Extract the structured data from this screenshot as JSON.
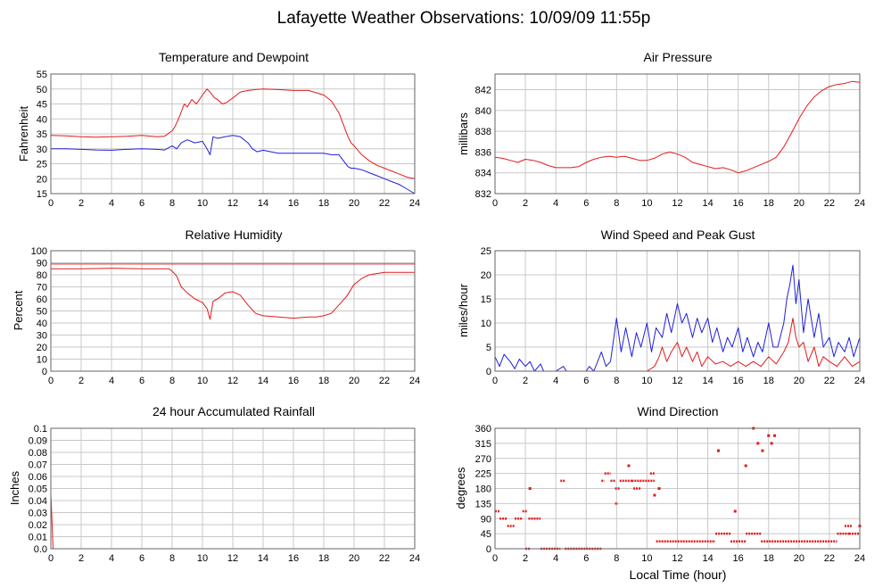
{
  "page": {
    "title": "Lafayette Weather Observations: 10/09/09 11:55p",
    "xlabel": "Local Time (hour)"
  },
  "colors": {
    "red": "#e41a1c",
    "blue": "#1f1fdd",
    "grid": "#c8c8c8",
    "frame": "#666666"
  },
  "chart_data": [
    {
      "id": "temp",
      "type": "line",
      "title": "Temperature and Dewpoint",
      "ylabel": "Fahrenheit",
      "xlim": [
        0,
        24
      ],
      "ylim": [
        15,
        55
      ],
      "xticks": [
        0,
        2,
        4,
        6,
        8,
        10,
        12,
        14,
        16,
        18,
        20,
        22,
        24
      ],
      "yticks": [
        15,
        20,
        25,
        30,
        35,
        40,
        45,
        50,
        55
      ],
      "grid": true,
      "series": [
        {
          "color": "red",
          "x": [
            0,
            1,
            2,
            3,
            4,
            5,
            6,
            7,
            7.5,
            8,
            8.2,
            8.5,
            8.8,
            9,
            9.3,
            9.6,
            10,
            10.3,
            10.5,
            10.8,
            11,
            11.3,
            11.6,
            12,
            12.5,
            13,
            13.5,
            14,
            15,
            16,
            17,
            18,
            18.5,
            19,
            19.3,
            19.6,
            19.8,
            20,
            20.5,
            21,
            21.5,
            22,
            22.5,
            23,
            23.5,
            24
          ],
          "y": [
            34.5,
            34.3,
            34,
            33.9,
            34,
            34.2,
            34.5,
            34,
            34.2,
            36,
            37.5,
            41,
            45,
            44,
            46.5,
            45,
            48,
            50,
            49,
            47,
            46.5,
            45,
            45.5,
            47,
            49,
            49.5,
            49.8,
            50,
            49.8,
            49.5,
            49.5,
            48,
            46,
            42,
            38,
            34,
            32,
            31,
            28,
            26,
            24.5,
            23.5,
            22.5,
            21.5,
            20.5,
            20
          ]
        },
        {
          "color": "blue",
          "x": [
            0,
            1,
            2,
            3,
            4,
            5,
            6,
            7,
            7.5,
            8,
            8.3,
            8.6,
            9,
            9.5,
            10,
            10.3,
            10.5,
            10.7,
            11,
            11.5,
            12,
            12.5,
            13,
            13.3,
            13.6,
            14,
            15,
            16,
            17,
            18,
            18.5,
            19,
            19.3,
            19.6,
            19.8,
            20,
            20.5,
            21,
            21.5,
            22,
            22.5,
            23,
            23.5,
            24
          ],
          "y": [
            30,
            30,
            29.8,
            29.6,
            29.5,
            29.8,
            30,
            29.8,
            29.6,
            31,
            30,
            32,
            33,
            32,
            32.5,
            30,
            28,
            34,
            33.5,
            34,
            34.5,
            34,
            32,
            30,
            29,
            29.5,
            28.5,
            28.5,
            28.5,
            28.5,
            28,
            28,
            26,
            24,
            23.5,
            23.5,
            23,
            22,
            21,
            20,
            19,
            18,
            16.5,
            15
          ]
        }
      ]
    },
    {
      "id": "pressure",
      "type": "line",
      "title": "Air Pressure",
      "ylabel": "millibars",
      "xlim": [
        0,
        24
      ],
      "ylim": [
        832,
        843.5
      ],
      "xticks": [
        0,
        2,
        4,
        6,
        8,
        10,
        12,
        14,
        16,
        18,
        20,
        22,
        24
      ],
      "yticks": [
        832,
        834,
        836,
        838,
        840,
        842
      ],
      "grid": true,
      "series": [
        {
          "color": "red",
          "x": [
            0,
            0.5,
            1,
            1.5,
            2,
            2.5,
            3,
            3.5,
            4,
            4.5,
            5,
            5.5,
            6,
            6.5,
            7,
            7.5,
            8,
            8.5,
            9,
            9.5,
            10,
            10.5,
            11,
            11.5,
            12,
            12.5,
            13,
            13.5,
            14,
            14.5,
            15,
            15.5,
            16,
            16.5,
            17,
            17.5,
            18,
            18.5,
            19,
            19.5,
            20,
            20.5,
            21,
            21.5,
            22,
            22.5,
            23,
            23.5,
            24
          ],
          "y": [
            835.5,
            835.4,
            835.2,
            835,
            835.3,
            835.2,
            835,
            834.7,
            834.5,
            834.5,
            834.5,
            834.6,
            835,
            835.3,
            835.5,
            835.6,
            835.5,
            835.6,
            835.4,
            835.2,
            835.2,
            835.4,
            835.8,
            836,
            835.8,
            835.5,
            835,
            834.8,
            834.6,
            834.4,
            834.5,
            834.3,
            834,
            834.2,
            834.5,
            834.8,
            835.1,
            835.5,
            836.5,
            837.8,
            839.2,
            840.4,
            841.3,
            841.9,
            842.3,
            842.5,
            842.6,
            842.8,
            842.7
          ]
        }
      ]
    },
    {
      "id": "humidity",
      "type": "line",
      "title": "Relative Humidity",
      "ylabel": "Percent",
      "xlim": [
        0,
        24
      ],
      "ylim": [
        0,
        100
      ],
      "xticks": [
        0,
        2,
        4,
        6,
        8,
        10,
        12,
        14,
        16,
        18,
        20,
        22,
        24
      ],
      "yticks": [
        0,
        10,
        20,
        30,
        40,
        50,
        60,
        70,
        80,
        90,
        100
      ],
      "grid": true,
      "series": [
        {
          "color": "red",
          "x": [
            0,
            24
          ],
          "y": [
            89,
            89
          ]
        },
        {
          "color": "red",
          "x": [
            0,
            2,
            4,
            6,
            7,
            7.8,
            8,
            8.3,
            8.6,
            9,
            9.5,
            10,
            10.3,
            10.5,
            10.7,
            11,
            11.5,
            12,
            12.5,
            13,
            13.5,
            14,
            15,
            16,
            17,
            17.5,
            18,
            18.5,
            19,
            19.5,
            20,
            20.5,
            21,
            22,
            23,
            24
          ],
          "y": [
            85,
            85,
            85.5,
            85,
            85,
            85,
            83,
            79,
            70,
            65,
            60,
            57,
            52,
            43,
            58,
            60,
            65,
            66,
            63,
            55,
            48,
            46,
            45,
            44,
            45,
            45,
            46,
            48,
            55,
            62,
            72,
            77,
            80,
            82,
            82,
            82
          ]
        }
      ]
    },
    {
      "id": "wind",
      "type": "line",
      "title": "Wind Speed and Peak Gust",
      "ylabel": "miles/hour",
      "xlim": [
        0,
        24
      ],
      "ylim": [
        0,
        25
      ],
      "xticks": [
        0,
        2,
        4,
        6,
        8,
        10,
        12,
        14,
        16,
        18,
        20,
        22,
        24
      ],
      "yticks": [
        0,
        5,
        10,
        15,
        20,
        25
      ],
      "grid": true,
      "series": [
        {
          "color": "blue",
          "x": [
            0,
            0.3,
            0.6,
            1,
            1.3,
            1.6,
            2,
            2.3,
            2.6,
            3,
            3.2,
            4,
            4.5,
            4.7,
            5,
            6,
            6.2,
            6.5,
            7,
            7.3,
            7.6,
            8,
            8.3,
            8.6,
            9,
            9.3,
            9.6,
            10,
            10.3,
            10.6,
            11,
            11.3,
            11.6,
            12,
            12.3,
            12.6,
            13,
            13.3,
            13.6,
            14,
            14.3,
            14.6,
            15,
            15.3,
            15.6,
            16,
            16.3,
            16.6,
            17,
            17.3,
            17.6,
            18,
            18.3,
            18.6,
            19,
            19.2,
            19.4,
            19.6,
            19.8,
            20,
            20.3,
            20.6,
            21,
            21.3,
            21.6,
            22,
            22.3,
            22.6,
            23,
            23.3,
            23.6,
            24
          ],
          "y": [
            3,
            1,
            3.5,
            2,
            0.5,
            2.5,
            1,
            2,
            0,
            1.5,
            0,
            0,
            1,
            0,
            0,
            0,
            1,
            0,
            4,
            1,
            2,
            11,
            4,
            9,
            3,
            8,
            5,
            10,
            4,
            9,
            7,
            12,
            8,
            14,
            10,
            12,
            7,
            11,
            8,
            11,
            6,
            9,
            4,
            7,
            5,
            9,
            4,
            7,
            3,
            6,
            4,
            10,
            5,
            5,
            10,
            15,
            18,
            22,
            14,
            19,
            8,
            15,
            7,
            12,
            5,
            7,
            3,
            6,
            4,
            7,
            3,
            7
          ]
        },
        {
          "color": "red",
          "x": [
            0,
            8,
            10,
            10.5,
            10.8,
            11,
            11.3,
            11.6,
            12,
            12.3,
            12.6,
            13,
            13.3,
            13.6,
            14,
            14.5,
            15,
            15.5,
            16,
            16.5,
            17,
            17.5,
            18,
            18.5,
            19,
            19.3,
            19.6,
            19.8,
            20,
            20.3,
            20.6,
            21,
            21.3,
            21.6,
            22,
            22.5,
            23,
            23.5,
            24
          ],
          "y": [
            0,
            0,
            0,
            1,
            3,
            5,
            2,
            4,
            6,
            3,
            5,
            2,
            4,
            1,
            3,
            1.5,
            2,
            1,
            2,
            1,
            2,
            1,
            3,
            1.5,
            4,
            6,
            11,
            7,
            5,
            6,
            2,
            5,
            1,
            3,
            2,
            1,
            3,
            1,
            2
          ]
        }
      ]
    },
    {
      "id": "rain",
      "type": "line",
      "title": "24 hour Accumulated Rainfall",
      "ylabel": "Inches",
      "xlim": [
        0,
        24
      ],
      "ylim": [
        0,
        0.1
      ],
      "xticks": [
        0,
        2,
        4,
        6,
        8,
        10,
        12,
        14,
        16,
        18,
        20,
        22,
        24
      ],
      "yticks": [
        0.0,
        0.01,
        0.02,
        0.03,
        0.04,
        0.05,
        0.06,
        0.07,
        0.08,
        0.09,
        0.1
      ],
      "ytick_labels": [
        "0.0",
        "0.01",
        "0.02",
        "0.03",
        "0.04",
        "0.05",
        "0.06",
        "0.07",
        "0.08",
        "0.09",
        "0.1"
      ],
      "grid": true,
      "series": [
        {
          "color": "red",
          "x": [
            0,
            0.05,
            0.15,
            24
          ],
          "y": [
            0.045,
            0.03,
            0,
            0
          ]
        }
      ]
    },
    {
      "id": "direction",
      "type": "scatter",
      "title": "Wind Direction",
      "ylabel": "degrees",
      "xlim": [
        0,
        24
      ],
      "ylim": [
        0,
        360
      ],
      "xticks": [
        0,
        2,
        4,
        6,
        8,
        10,
        12,
        14,
        16,
        18,
        20,
        22,
        24
      ],
      "yticks": [
        0,
        45,
        90,
        135,
        180,
        225,
        270,
        315,
        360
      ],
      "grid": true,
      "series": [
        {
          "color": "red",
          "segments": [
            [
              0,
              0.3,
              112
            ],
            [
              0.3,
              0.8,
              90
            ],
            [
              0.8,
              1.3,
              68
            ],
            [
              1.3,
              1.8,
              90
            ],
            [
              1.8,
              2.1,
              112
            ],
            [
              2.0,
              2.3,
              0
            ],
            [
              2.2,
              3.0,
              90
            ],
            [
              3.0,
              4.3,
              0
            ],
            [
              4.3,
              4.6,
              203
            ],
            [
              4.6,
              6.0,
              0
            ],
            [
              6.0,
              7.0,
              0
            ],
            [
              7.0,
              7.2,
              203
            ],
            [
              7.2,
              7.6,
              225
            ],
            [
              7.6,
              7.9,
              203
            ],
            [
              7.9,
              8.1,
              135
            ],
            [
              7.9,
              8.2,
              180
            ],
            [
              8.2,
              9.0,
              203
            ],
            [
              9.0,
              10.5,
              203
            ],
            [
              9.1,
              9.6,
              180
            ],
            [
              10.2,
              10.5,
              225
            ],
            [
              10.6,
              14.5,
              22
            ],
            [
              14.5,
              15.5,
              45
            ],
            [
              15.5,
              16.5,
              22
            ],
            [
              16.5,
              17.5,
              45
            ],
            [
              17.5,
              18.2,
              22
            ],
            [
              18.2,
              22.5,
              22
            ],
            [
              22.5,
              23.3,
              45
            ],
            [
              23.3,
              24,
              45
            ],
            [
              23.0,
              23.5,
              68
            ]
          ],
          "points": [
            [
              2.3,
              180
            ],
            [
              8.8,
              248
            ],
            [
              10.5,
              160
            ],
            [
              10.8,
              180
            ],
            [
              14.7,
              293
            ],
            [
              15.8,
              112
            ],
            [
              16.5,
              248
            ],
            [
              17.0,
              360
            ],
            [
              17.3,
              315
            ],
            [
              17.6,
              293
            ],
            [
              18.0,
              338
            ],
            [
              18.2,
              315
            ],
            [
              18.4,
              338
            ],
            [
              24,
              68
            ]
          ]
        }
      ]
    }
  ]
}
